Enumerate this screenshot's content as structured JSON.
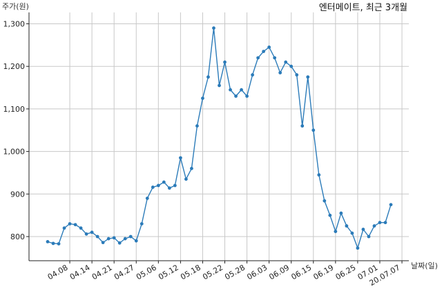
{
  "chart_data": {
    "type": "line",
    "title": "엔터메이트, 최근 3개월",
    "ylabel": "주가(원)",
    "xlabel": "날짜(일)",
    "ylim": [
      745,
      1310
    ],
    "yticks": [
      800,
      900,
      1000,
      1100,
      1200,
      1300
    ],
    "ytick_labels": [
      "800",
      "900",
      "1,000",
      "1,100",
      "1,200",
      "1,300"
    ],
    "xtick_labels": [
      "04.08",
      "04.14",
      "04.21",
      "04.27",
      "05.06",
      "05.12",
      "05.18",
      "05.22",
      "05.28",
      "06.03",
      "06.09",
      "06.15",
      "06.19",
      "06.25",
      "07.01",
      "20.07.07"
    ],
    "xtick_index": [
      4,
      8,
      12,
      16,
      20,
      24,
      28,
      32,
      36,
      40,
      44,
      48,
      52,
      56,
      60,
      64
    ],
    "grid": true,
    "color": "#2b7bb9",
    "series": [
      {
        "values": [
          788,
          784,
          783,
          820,
          830,
          828,
          820,
          806,
          810,
          800,
          786,
          795,
          797,
          785,
          795,
          800,
          790,
          830,
          890,
          916,
          920,
          928,
          914,
          920,
          985,
          935,
          960,
          1060,
          1125,
          1175,
          1290,
          1155,
          1210,
          1145,
          1130,
          1145,
          1130,
          1180,
          1220,
          1235,
          1245,
          1220,
          1185,
          1210,
          1200,
          1180,
          1060,
          1175,
          1050,
          945,
          884,
          850,
          812,
          855,
          825,
          808,
          773,
          817,
          800,
          825,
          833,
          833,
          875
        ]
      }
    ]
  }
}
